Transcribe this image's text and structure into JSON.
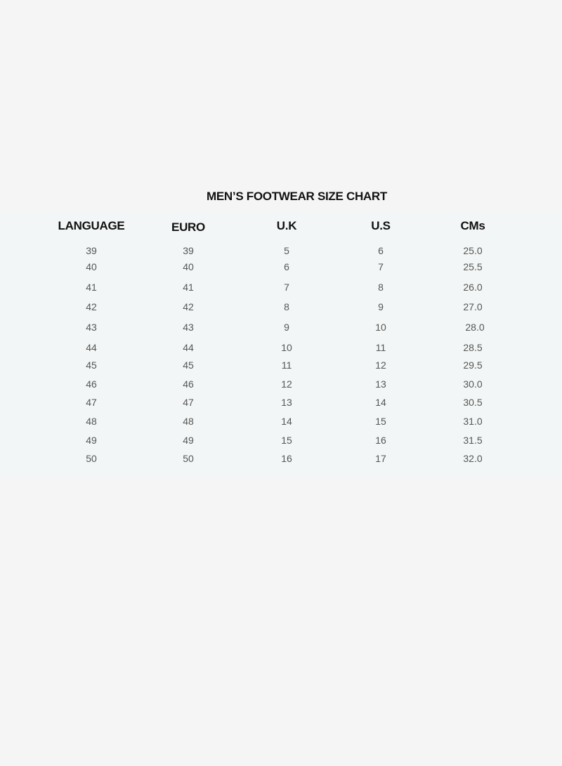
{
  "title": "MEN’S FOOTWEAR SIZE CHART",
  "headers": [
    "LANGUAGE",
    "EURO",
    "U.K",
    "U.S",
    "CMs"
  ],
  "rows": [
    [
      "39",
      "39",
      "5",
      "6",
      "25.0"
    ],
    [
      "40",
      "40",
      "6",
      "7",
      "25.5"
    ],
    [
      "41",
      "41",
      "7",
      "8",
      "26.0"
    ],
    [
      "42",
      "42",
      "8",
      "9",
      "27.0"
    ],
    [
      "43",
      "43",
      "9",
      "10",
      "28.0"
    ],
    [
      "44",
      "44",
      "10",
      "11",
      "28.5"
    ],
    [
      "45",
      "45",
      "11",
      "12",
      "29.5"
    ],
    [
      "46",
      "46",
      "12",
      "13",
      "30.0"
    ],
    [
      "47",
      "47",
      "13",
      "14",
      "30.5"
    ],
    [
      "48",
      "48",
      "14",
      "15",
      "31.0"
    ],
    [
      "49",
      "49",
      "15",
      "16",
      "31.5"
    ],
    [
      "50",
      "50",
      "16",
      "17",
      "32.0"
    ]
  ]
}
